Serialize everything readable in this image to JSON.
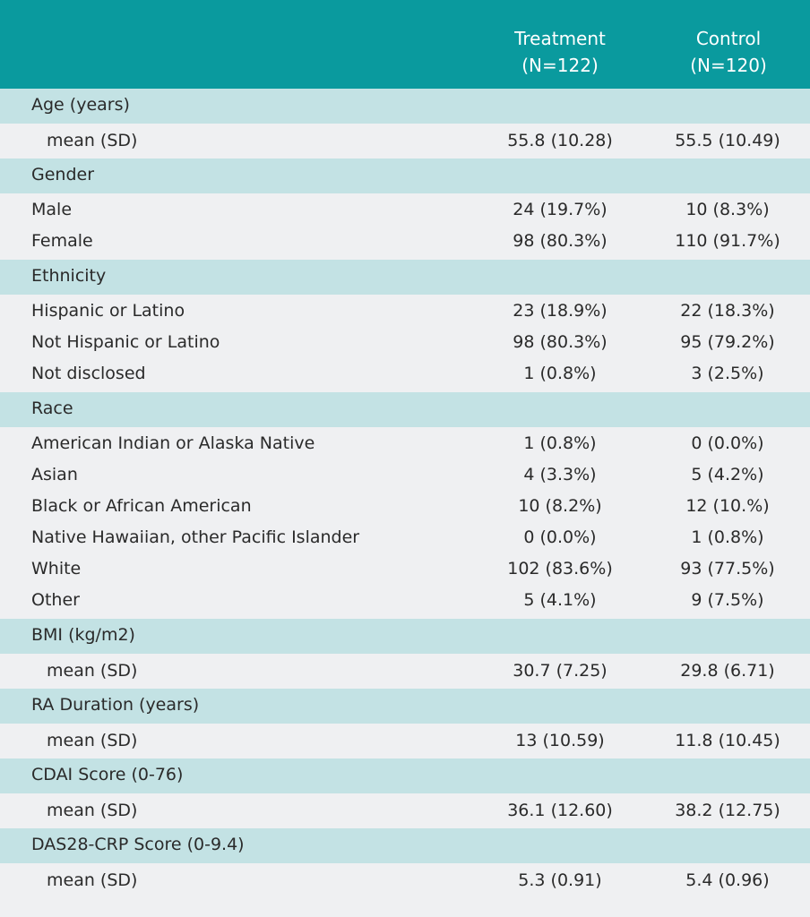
{
  "header": {
    "treatment": "Treatment",
    "treatment_n": "(N=122)",
    "control": "Control",
    "control_n": "(N=120)"
  },
  "sections": [
    {
      "title": "Age (years)",
      "stat": {
        "label": "mean (SD)",
        "treatment": "55.8 (10.28)",
        "control": "55.5 (10.49)"
      }
    },
    {
      "title": "Gender",
      "rows": [
        {
          "label": "Male",
          "treatment": "24 (19.7%)",
          "control": "10 (8.3%)"
        },
        {
          "label": "Female",
          "treatment": "98 (80.3%)",
          "control": "110 (91.7%)"
        }
      ]
    },
    {
      "title": "Ethnicity",
      "rows": [
        {
          "label": "Hispanic or Latino",
          "treatment": "23 (18.9%)",
          "control": "22 (18.3%)"
        },
        {
          "label": "Not Hispanic or Latino",
          "treatment": "98 (80.3%)",
          "control": "95 (79.2%)"
        },
        {
          "label": "Not disclosed",
          "treatment": "1 (0.8%)",
          "control": "3 (2.5%)"
        }
      ]
    },
    {
      "title": "Race",
      "rows": [
        {
          "label": "American Indian or Alaska Native",
          "treatment": "1 (0.8%)",
          "control": "0 (0.0%)"
        },
        {
          "label": "Asian",
          "treatment": "4 (3.3%)",
          "control": "5 (4.2%)"
        },
        {
          "label": "Black or African American",
          "treatment": "10 (8.2%)",
          "control": "12 (10.%)"
        },
        {
          "label": "Native Hawaiian, other Pacific Islander",
          "treatment": "0 (0.0%)",
          "control": "1 (0.8%)"
        },
        {
          "label": "White",
          "treatment": "102 (83.6%)",
          "control": "93 (77.5%)"
        },
        {
          "label": "Other",
          "treatment": "5 (4.1%)",
          "control": "9 (7.5%)"
        }
      ]
    },
    {
      "title": "BMI (kg/m2)",
      "stat": {
        "label": "mean (SD)",
        "treatment": "30.7 (7.25)",
        "control": "29.8 (6.71)"
      }
    },
    {
      "title": "RA Duration (years)",
      "stat": {
        "label": "mean (SD)",
        "treatment": "13 (10.59)",
        "control": "11.8 (10.45)"
      }
    },
    {
      "title": "CDAI Score (0-76)",
      "stat": {
        "label": "mean (SD)",
        "treatment": "36.1 (12.60)",
        "control": "38.2 (12.75)"
      }
    },
    {
      "title": "DAS28-CRP Score (0-9.4)",
      "stat": {
        "label": "mean (SD)",
        "treatment": "5.3 (0.91)",
        "control": "5.4 (0.96)"
      }
    }
  ]
}
